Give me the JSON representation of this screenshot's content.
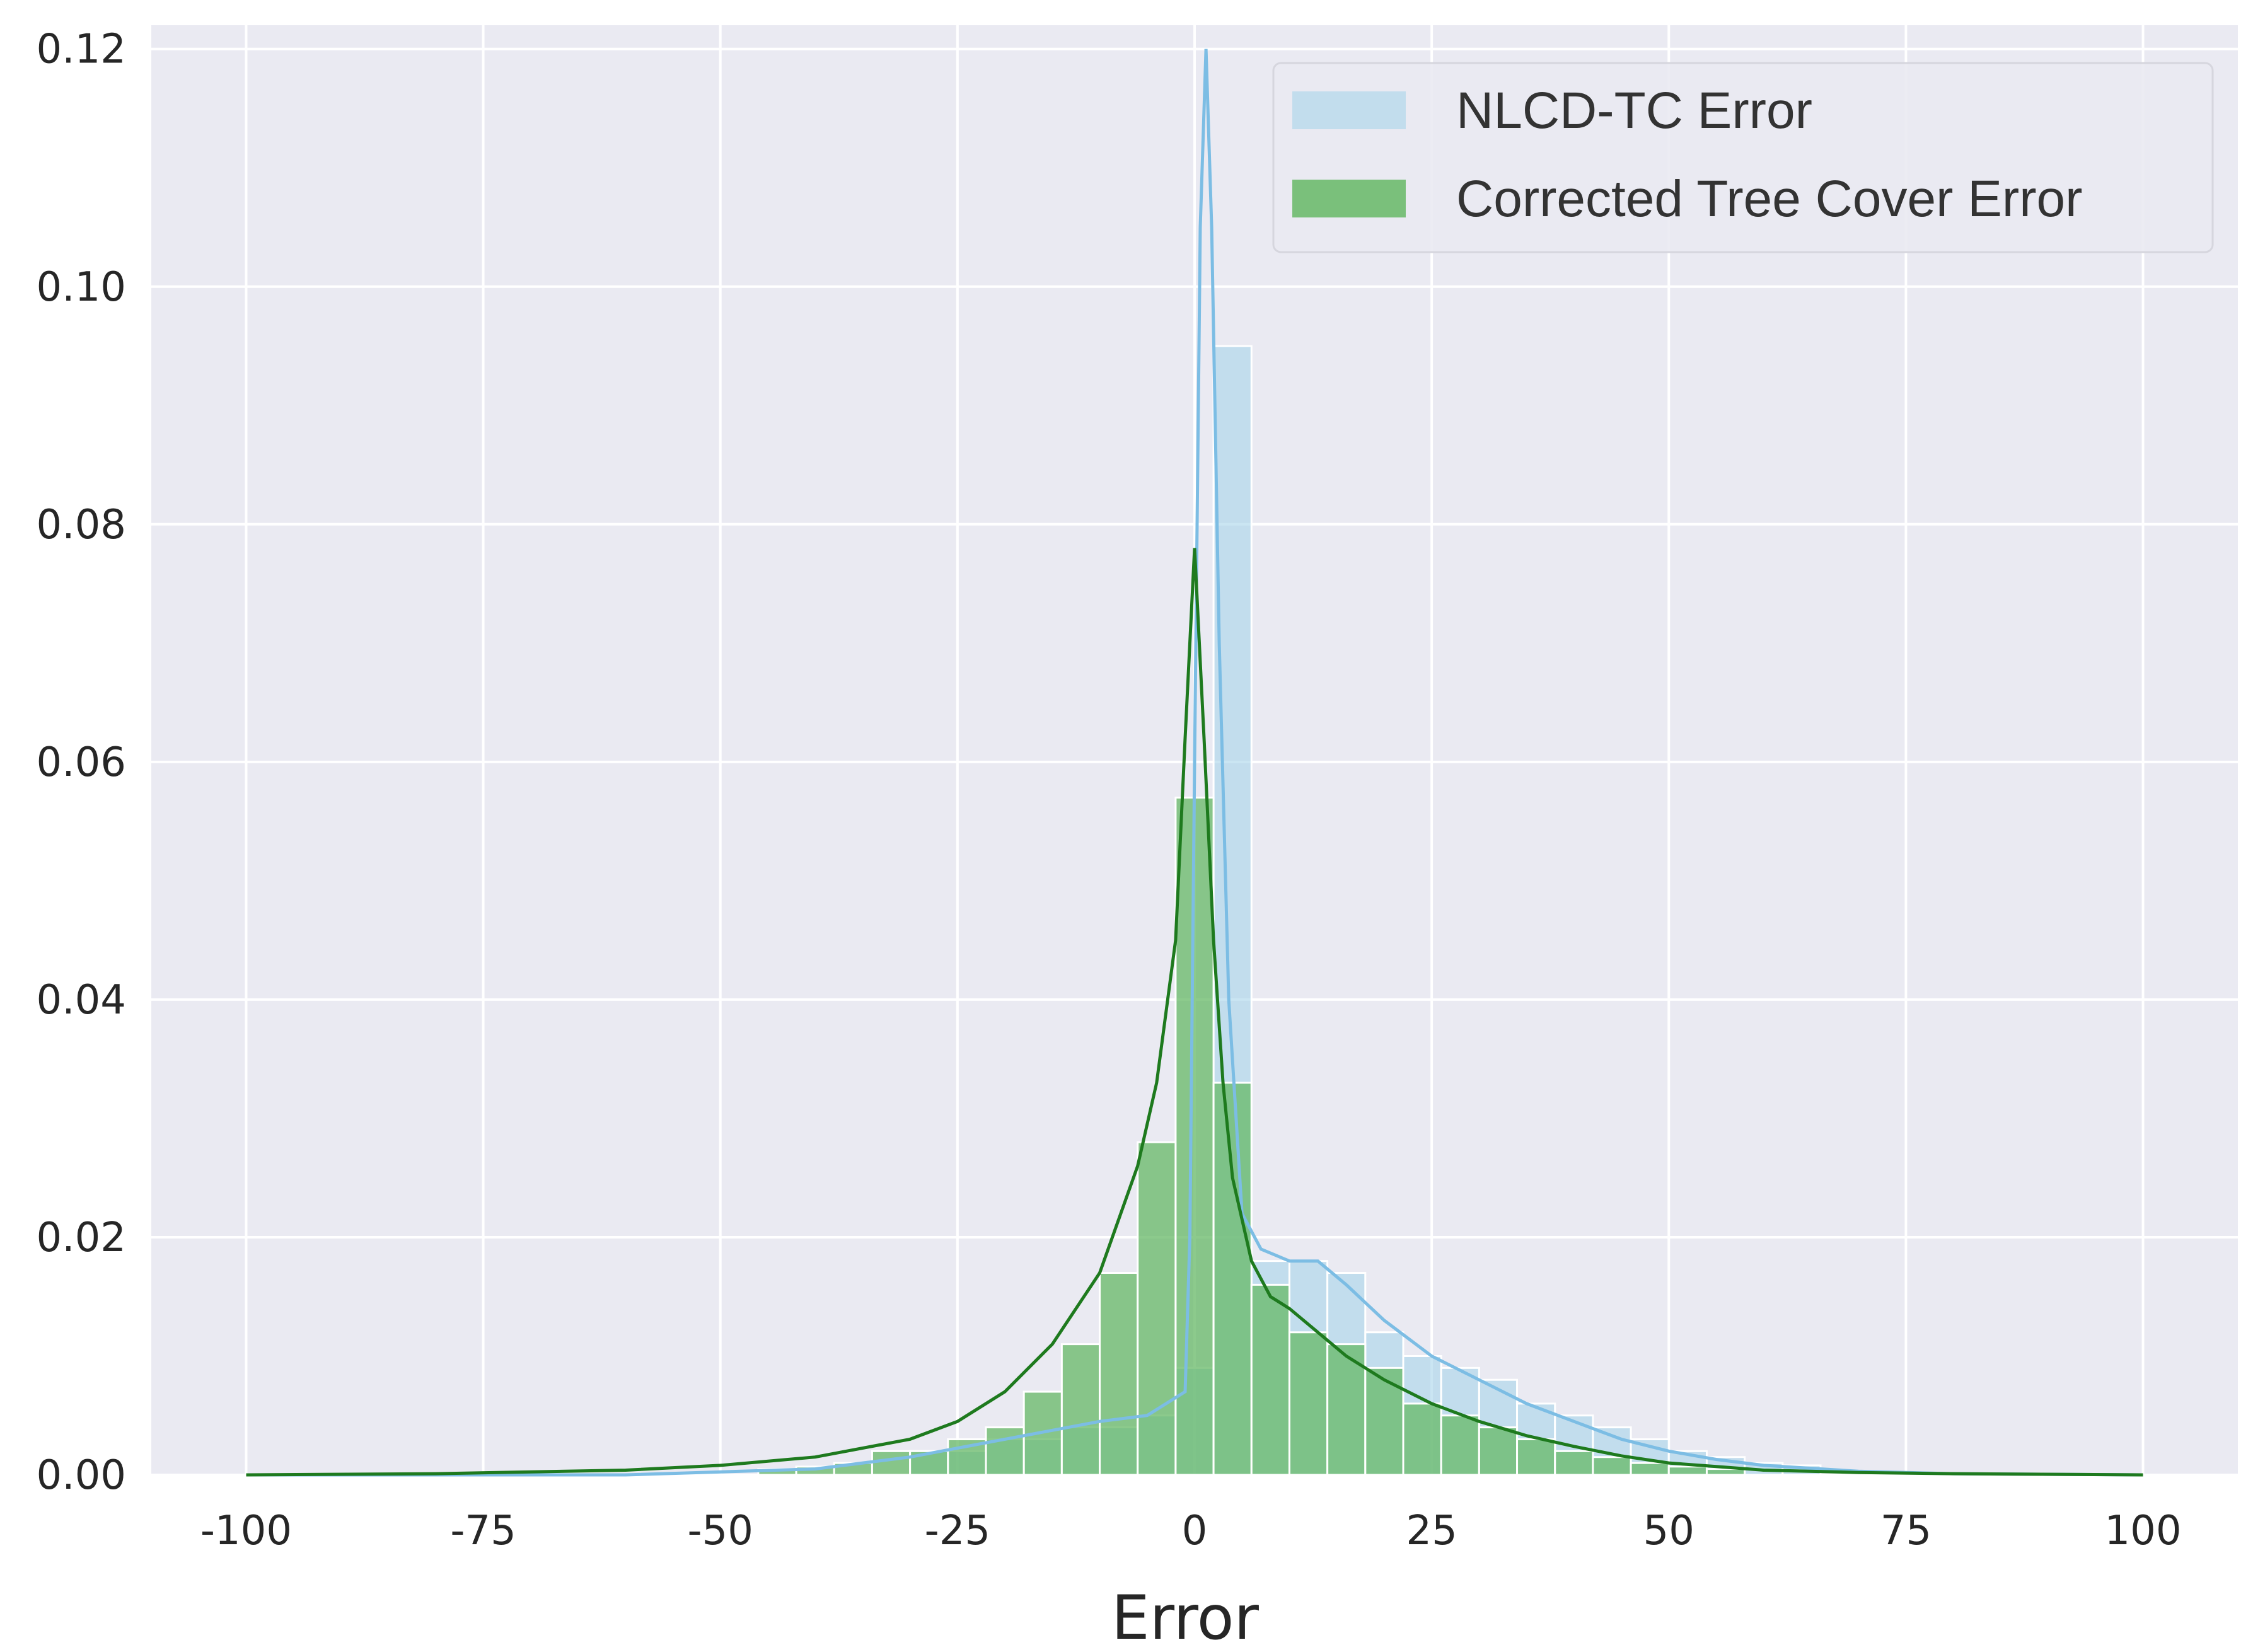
{
  "chart_data": {
    "type": "histogram",
    "title": "",
    "xlabel": "Error",
    "ylabel": "",
    "xlim": [
      -110,
      110
    ],
    "ylim": [
      0,
      0.122
    ],
    "x_ticks": [
      -100,
      -75,
      -50,
      -25,
      0,
      25,
      50,
      75,
      100
    ],
    "y_ticks": [
      0.0,
      0.02,
      0.04,
      0.06,
      0.08,
      0.1,
      0.12
    ],
    "y_tick_labels": [
      "0.00",
      "0.02",
      "0.04",
      "0.06",
      "0.08",
      "0.10",
      "0.12"
    ],
    "grid": true,
    "legend_position": "top-right",
    "bin_width": 4,
    "series": [
      {
        "name": "NLCD-TC Error",
        "color": "#a6d3ea",
        "kde_color": "#7cbde4",
        "bins": [
          {
            "x0": -30,
            "value": 0.002
          },
          {
            "x0": -26,
            "value": 0.002
          },
          {
            "x0": -22,
            "value": 0.003
          },
          {
            "x0": -18,
            "value": 0.003
          },
          {
            "x0": -14,
            "value": 0.004
          },
          {
            "x0": -10,
            "value": 0.004
          },
          {
            "x0": -6,
            "value": 0.005
          },
          {
            "x0": -2,
            "value": 0.009
          },
          {
            "x0": 2,
            "value": 0.095
          },
          {
            "x0": 6,
            "value": 0.018
          },
          {
            "x0": 10,
            "value": 0.018
          },
          {
            "x0": 14,
            "value": 0.017
          },
          {
            "x0": 18,
            "value": 0.012
          },
          {
            "x0": 22,
            "value": 0.01
          },
          {
            "x0": 26,
            "value": 0.009
          },
          {
            "x0": 30,
            "value": 0.008
          },
          {
            "x0": 34,
            "value": 0.006
          },
          {
            "x0": 38,
            "value": 0.005
          },
          {
            "x0": 42,
            "value": 0.004
          },
          {
            "x0": 46,
            "value": 0.003
          },
          {
            "x0": 50,
            "value": 0.002
          },
          {
            "x0": 54,
            "value": 0.0015
          },
          {
            "x0": 58,
            "value": 0.001
          },
          {
            "x0": 62,
            "value": 0.0008
          }
        ],
        "kde": [
          [
            -100,
            0.0
          ],
          [
            -60,
            0.0
          ],
          [
            -40,
            0.0005
          ],
          [
            -30,
            0.0015
          ],
          [
            -20,
            0.003
          ],
          [
            -10,
            0.0045
          ],
          [
            -5,
            0.005
          ],
          [
            -3,
            0.006
          ],
          [
            -1,
            0.007
          ],
          [
            -0.5,
            0.02
          ],
          [
            0,
            0.06
          ],
          [
            0.6,
            0.105
          ],
          [
            1.2,
            0.12
          ],
          [
            1.8,
            0.105
          ],
          [
            2.6,
            0.07
          ],
          [
            3.6,
            0.04
          ],
          [
            5,
            0.022
          ],
          [
            7,
            0.019
          ],
          [
            10,
            0.018
          ],
          [
            13,
            0.018
          ],
          [
            16,
            0.016
          ],
          [
            20,
            0.013
          ],
          [
            25,
            0.01
          ],
          [
            30,
            0.008
          ],
          [
            35,
            0.006
          ],
          [
            40,
            0.0045
          ],
          [
            45,
            0.003
          ],
          [
            50,
            0.002
          ],
          [
            55,
            0.0013
          ],
          [
            60,
            0.0008
          ],
          [
            70,
            0.0003
          ],
          [
            80,
            0.0001
          ],
          [
            100,
            0.0
          ]
        ]
      },
      {
        "name": "Corrected Tree Cover Error",
        "color": "#66b866",
        "kde_color": "#1e7a1e",
        "bins": [
          {
            "x0": -46,
            "value": 0.0005
          },
          {
            "x0": -42,
            "value": 0.0007
          },
          {
            "x0": -38,
            "value": 0.001
          },
          {
            "x0": -34,
            "value": 0.002
          },
          {
            "x0": -30,
            "value": 0.002
          },
          {
            "x0": -26,
            "value": 0.003
          },
          {
            "x0": -22,
            "value": 0.004
          },
          {
            "x0": -18,
            "value": 0.007
          },
          {
            "x0": -14,
            "value": 0.011
          },
          {
            "x0": -10,
            "value": 0.017
          },
          {
            "x0": -6,
            "value": 0.028
          },
          {
            "x0": -2,
            "value": 0.057
          },
          {
            "x0": 2,
            "value": 0.033
          },
          {
            "x0": 6,
            "value": 0.016
          },
          {
            "x0": 10,
            "value": 0.012
          },
          {
            "x0": 14,
            "value": 0.011
          },
          {
            "x0": 18,
            "value": 0.009
          },
          {
            "x0": 22,
            "value": 0.006
          },
          {
            "x0": 26,
            "value": 0.005
          },
          {
            "x0": 30,
            "value": 0.004
          },
          {
            "x0": 34,
            "value": 0.003
          },
          {
            "x0": 38,
            "value": 0.002
          },
          {
            "x0": 42,
            "value": 0.0015
          },
          {
            "x0": 46,
            "value": 0.001
          },
          {
            "x0": 50,
            "value": 0.0007
          },
          {
            "x0": 54,
            "value": 0.0005
          }
        ],
        "kde": [
          [
            -100,
            0.0
          ],
          [
            -80,
            0.0001
          ],
          [
            -60,
            0.0004
          ],
          [
            -50,
            0.0008
          ],
          [
            -40,
            0.0015
          ],
          [
            -30,
            0.003
          ],
          [
            -25,
            0.0045
          ],
          [
            -20,
            0.007
          ],
          [
            -15,
            0.011
          ],
          [
            -10,
            0.017
          ],
          [
            -6,
            0.026
          ],
          [
            -4,
            0.033
          ],
          [
            -2,
            0.045
          ],
          [
            -1,
            0.062
          ],
          [
            0,
            0.078
          ],
          [
            1,
            0.062
          ],
          [
            2,
            0.045
          ],
          [
            3,
            0.033
          ],
          [
            4,
            0.025
          ],
          [
            6,
            0.018
          ],
          [
            8,
            0.015
          ],
          [
            10,
            0.014
          ],
          [
            13,
            0.012
          ],
          [
            16,
            0.01
          ],
          [
            20,
            0.008
          ],
          [
            25,
            0.006
          ],
          [
            30,
            0.0045
          ],
          [
            35,
            0.0033
          ],
          [
            40,
            0.0024
          ],
          [
            45,
            0.0016
          ],
          [
            50,
            0.001
          ],
          [
            55,
            0.0007
          ],
          [
            60,
            0.0004
          ],
          [
            70,
            0.0002
          ],
          [
            80,
            0.0001
          ],
          [
            100,
            0.0
          ]
        ]
      }
    ]
  }
}
